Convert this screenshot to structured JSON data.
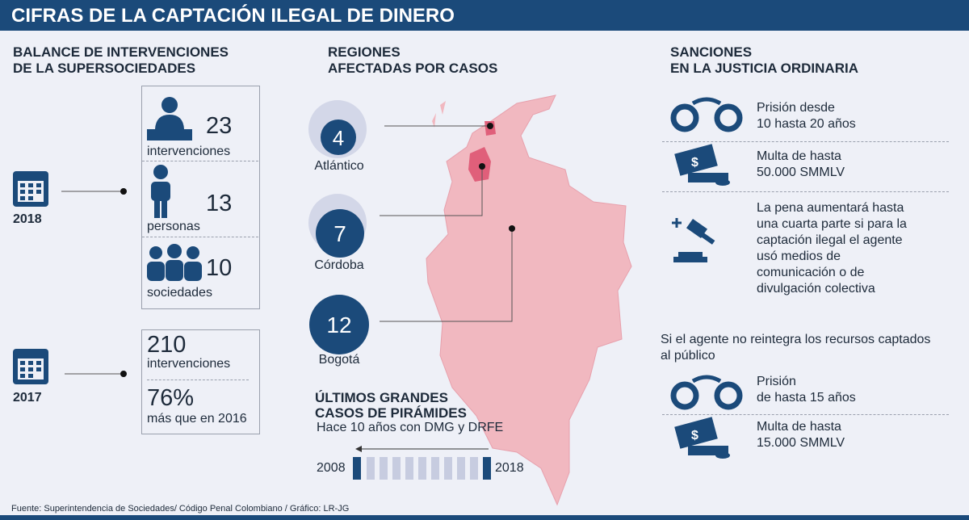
{
  "header": {
    "title": "CIFRAS DE LA CAPTACIÓN ILEGAL DE DINERO"
  },
  "balance": {
    "title": [
      "BALANCE DE INTERVENCIONES",
      "DE LA SUPERSOCIEDADES"
    ],
    "years": [
      {
        "year": "2018",
        "items": [
          {
            "value": "23",
            "label": "intervenciones"
          },
          {
            "value": "13",
            "label": "personas"
          },
          {
            "value": "10",
            "label": "sociedades"
          }
        ]
      },
      {
        "year": "2017",
        "items": [
          {
            "value": "210",
            "label": "intervenciones"
          },
          {
            "value": "76%",
            "label": "más que en 2016"
          }
        ]
      }
    ]
  },
  "regions": {
    "title": [
      "REGIONES",
      "AFECTADAS POR CASOS"
    ],
    "items": [
      {
        "value": "4",
        "label": "Atlántico"
      },
      {
        "value": "7",
        "label": "Córdoba"
      },
      {
        "value": "12",
        "label": "Bogotá"
      }
    ]
  },
  "pyramids": {
    "title": [
      "ÚLTIMOS GRANDES",
      "CASOS DE PIRÁMIDES"
    ],
    "subtitle": "Hace 10 años con DMG y DRFE",
    "start": "2008",
    "end": "2018"
  },
  "sanctions": {
    "title": [
      "SANCIONES",
      "EN LA JUSTICIA ORDINARIA"
    ],
    "items": [
      [
        "Prisión desde",
        "10 hasta 20 años"
      ],
      [
        "Multa de hasta",
        "50.000 SMMLV"
      ],
      [
        "La pena aumentará hasta",
        "una cuarta parte si para la",
        "captación ilegal el agente",
        "usó medios de",
        "comunicación o de",
        "divulgación colectiva"
      ]
    ],
    "note": [
      "Si el agente no reintegra los recursos captados",
      "al público"
    ],
    "items2": [
      [
        "Prisión",
        "de hasta 15 años"
      ],
      [
        "Multa de hasta",
        "15.000 SMMLV"
      ]
    ]
  },
  "footer": "Fuente: Superintendencia de Sociedades/ Código Penal Colombiano / Gráfico: LR-JG"
}
